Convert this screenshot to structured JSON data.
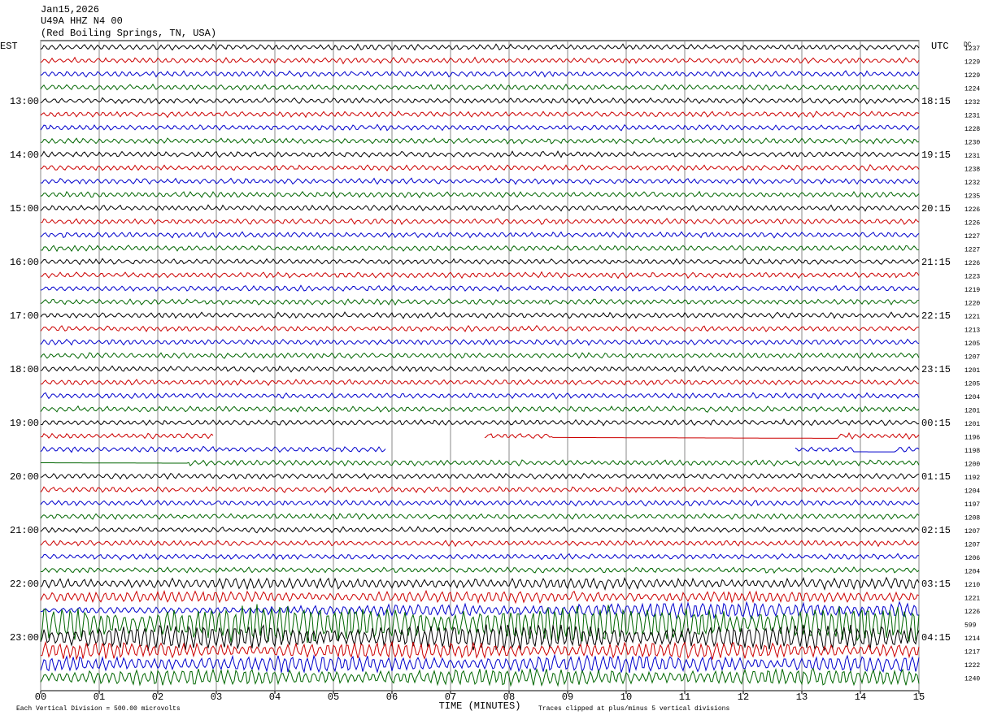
{
  "header": {
    "date": "Jan15,2026",
    "station": "U49A HHZ N4 00",
    "location": "(Red Boiling Springs, TN, USA)"
  },
  "left_axis": {
    "title": "EST",
    "labels": [
      "13:00",
      "14:00",
      "15:00",
      "16:00",
      "17:00",
      "18:00",
      "19:00",
      "20:00",
      "21:00",
      "22:00",
      "23:00"
    ]
  },
  "right_axis": {
    "title": "UTC",
    "labels": [
      "18:15",
      "19:15",
      "20:15",
      "21:15",
      "22:15",
      "23:15",
      "00:15",
      "01:15",
      "02:15",
      "03:15",
      "04:15"
    ],
    "dc_title": "DC",
    "dc_values": [
      1237,
      1229,
      1229,
      1224,
      1232,
      1231,
      1228,
      1230,
      1231,
      1238,
      1232,
      1235,
      1226,
      1226,
      1227,
      1227,
      1226,
      1223,
      1219,
      1220,
      1221,
      1213,
      1205,
      1207,
      1201,
      1205,
      1204,
      1201,
      1201,
      1196,
      1198,
      1200,
      1192,
      1204,
      1197,
      1208,
      1207,
      1207,
      1206,
      1204,
      1210,
      1221,
      1226,
      599,
      1214,
      1217,
      1222,
      1240
    ]
  },
  "x_axis": {
    "title": "TIME (MINUTES)",
    "ticks": [
      "00",
      "01",
      "02",
      "03",
      "04",
      "05",
      "06",
      "07",
      "08",
      "09",
      "10",
      "11",
      "12",
      "13",
      "14",
      "15"
    ]
  },
  "footer": {
    "scale": "Each Vertical Division =  500.00 microvolts",
    "clip": "Traces clipped at plus/minus 5 vertical divisions"
  }
}
